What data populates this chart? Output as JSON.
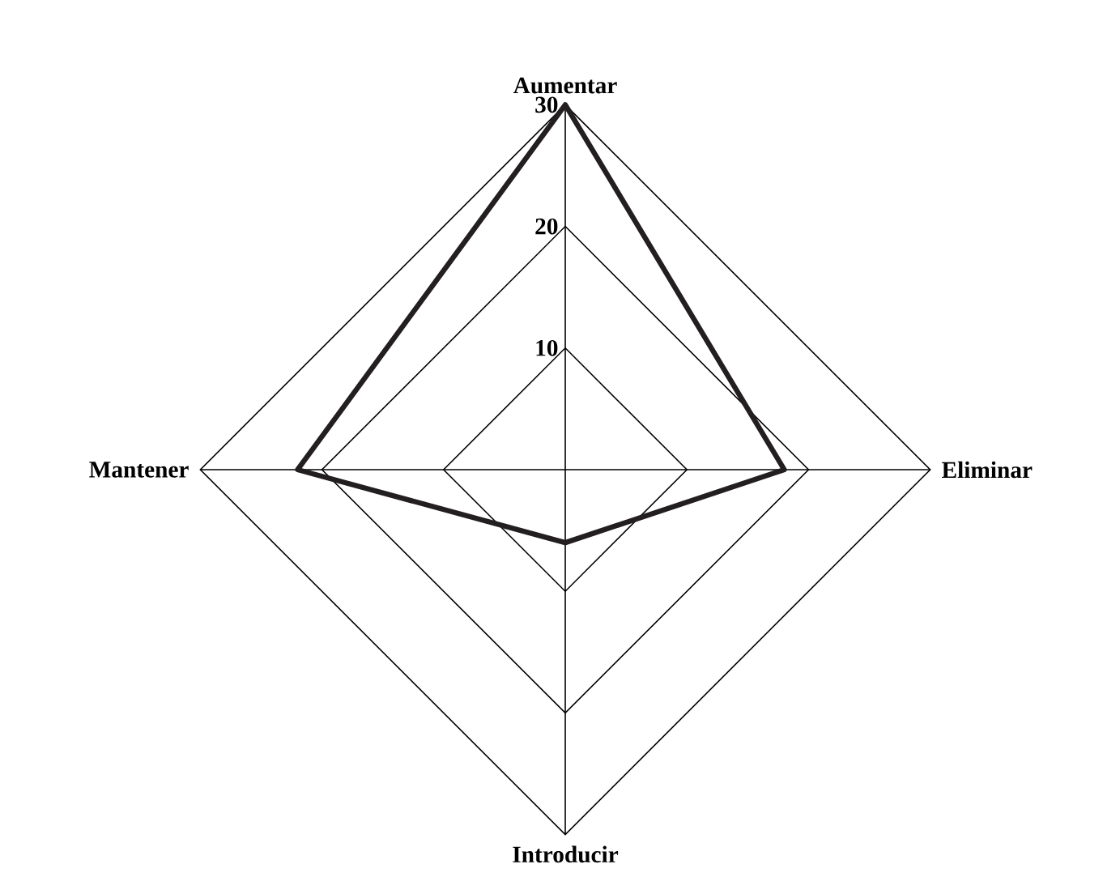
{
  "chart_data": {
    "type": "radar",
    "categories": [
      "Aumentar",
      "Eliminar",
      "Introducir",
      "Mantener"
    ],
    "series": [
      {
        "color": "#231f20",
        "values": [
          30,
          18,
          6,
          22
        ]
      }
    ],
    "ylim": [
      0,
      30
    ],
    "yticks": [
      10,
      20,
      30
    ],
    "grid": true
  }
}
